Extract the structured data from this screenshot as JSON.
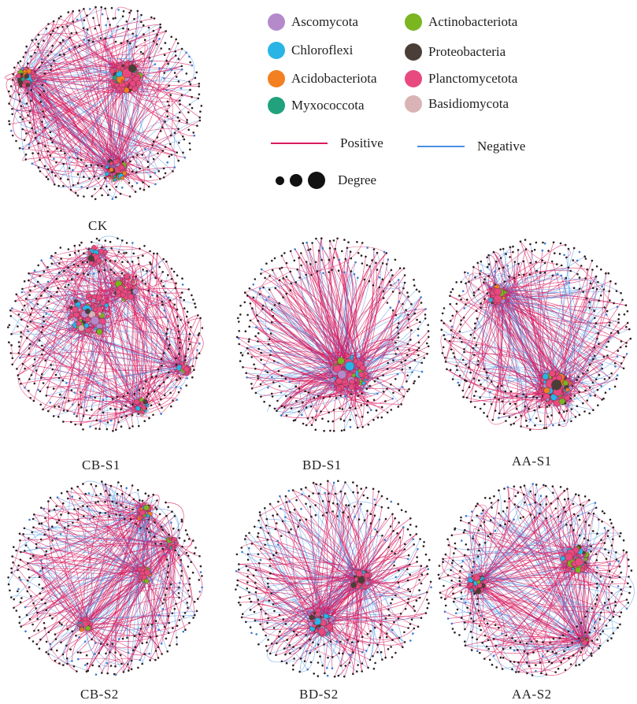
{
  "figure": {
    "networks": [
      {
        "id": "ck",
        "label": "CK",
        "clusters": [
          {
            "w": 1.0
          },
          {
            "w": 0.55
          },
          {
            "w": 0.45
          }
        ],
        "negative_share": 0.28,
        "hub_colors": [
          "#b48acb",
          "#29b4e6",
          "#f28020",
          "#21a27c",
          "#7bb520",
          "#4a3f38"
        ]
      },
      {
        "id": "cb-s1",
        "label": "CB-S1",
        "clusters": [
          {
            "w": 1.0
          },
          {
            "w": 0.55
          },
          {
            "w": 0.25
          },
          {
            "w": 0.22
          },
          {
            "w": 0.3
          }
        ],
        "negative_share": 0.3,
        "hub_colors": [
          "#b48acb",
          "#29b4e6",
          "#7bb520",
          "#4a3f38",
          "#d9b3b5"
        ]
      },
      {
        "id": "bd-s1",
        "label": "BD-S1",
        "clusters": [
          {
            "w": 1.0
          }
        ],
        "negative_share": 0.3,
        "hub_colors": [
          "#b48acb",
          "#29b4e6",
          "#7bb520"
        ]
      },
      {
        "id": "aa-s1",
        "label": "AA-S1",
        "clusters": [
          {
            "w": 0.6
          },
          {
            "w": 1.0
          }
        ],
        "negative_share": 0.35,
        "hub_colors": [
          "#b48acb",
          "#7bb520",
          "#4a3f38",
          "#29b4e6",
          "#f28020"
        ]
      },
      {
        "id": "cb-s2",
        "label": "CB-S2",
        "clusters": [
          {
            "w": 0.4
          },
          {
            "w": 0.25
          },
          {
            "w": 0.3
          },
          {
            "w": 0.3
          }
        ],
        "negative_share": 0.38,
        "hub_colors": [
          "#b48acb",
          "#29b4e6",
          "#7bb520",
          "#f28020"
        ]
      },
      {
        "id": "bd-s2",
        "label": "BD-S2",
        "clusters": [
          {
            "w": 0.8
          },
          {
            "w": 0.6
          }
        ],
        "negative_share": 0.34,
        "hub_colors": [
          "#b48acb",
          "#29b4e6",
          "#4a3f38"
        ]
      },
      {
        "id": "aa-s2",
        "label": "AA-S2",
        "clusters": [
          {
            "w": 0.75
          },
          {
            "w": 0.45
          },
          {
            "w": 0.2
          }
        ],
        "negative_share": 0.42,
        "hub_colors": [
          "#b48acb",
          "#4a3f38",
          "#7bb520",
          "#29b4e6"
        ]
      }
    ]
  },
  "legend": {
    "phyla": [
      {
        "name": "Ascomycota",
        "color": "#b48acb"
      },
      {
        "name": "Actinobacteriota",
        "color": "#7bb520"
      },
      {
        "name": "Chloroflexi",
        "color": "#29b4e6"
      },
      {
        "name": "Proteobacteria",
        "color": "#4a3f38"
      },
      {
        "name": "Acidobacteriota",
        "color": "#f28020"
      },
      {
        "name": "Planctomycetota",
        "color": "#e8497f"
      },
      {
        "name": "Myxococcota",
        "color": "#21a27c"
      },
      {
        "name": "Basidiomycota",
        "color": "#d9b3b5"
      }
    ],
    "edges": {
      "positive": {
        "label": "Positive",
        "color": "#d81b5f"
      },
      "negative": {
        "label": "Negative",
        "color": "#4a90e2"
      }
    },
    "degree_label": "Degree"
  }
}
